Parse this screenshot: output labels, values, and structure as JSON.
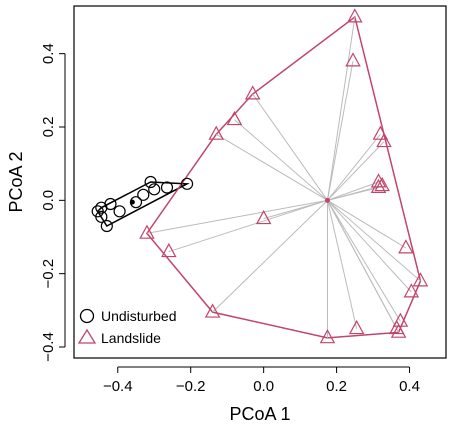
{
  "chart_data": {
    "type": "scatter",
    "xlabel": "PCoA 1",
    "ylabel": "PCoA 2",
    "xlim": [
      -0.52,
      0.5
    ],
    "ylim": [
      -0.43,
      0.53
    ],
    "x_ticks": [
      -0.4,
      -0.2,
      0.0,
      0.2,
      0.4
    ],
    "x_tick_labels": [
      "−0.4",
      "−0.2",
      "0.0",
      "0.2",
      "0.4"
    ],
    "y_ticks": [
      -0.4,
      -0.2,
      0.0,
      0.2,
      0.4
    ],
    "y_tick_labels": [
      "−0.4",
      "−0.2",
      "0.0",
      "0.2",
      "0.4"
    ],
    "grid": false,
    "legend_position": "bottom-left",
    "series": [
      {
        "name": "Undisturbed",
        "marker": "circle",
        "color": "#000000",
        "hull": true,
        "spider": false,
        "centroid": [
          -0.36,
          -0.005
        ],
        "points": [
          [
            -0.455,
            -0.03
          ],
          [
            -0.445,
            -0.045
          ],
          [
            -0.445,
            -0.02
          ],
          [
            -0.43,
            -0.07
          ],
          [
            -0.42,
            -0.01
          ],
          [
            -0.395,
            -0.03
          ],
          [
            -0.35,
            -0.005
          ],
          [
            -0.33,
            0.015
          ],
          [
            -0.31,
            0.05
          ],
          [
            -0.3,
            0.03
          ],
          [
            -0.265,
            0.035
          ],
          [
            -0.21,
            0.045
          ]
        ]
      },
      {
        "name": "Landslide",
        "marker": "triangle",
        "color": "#c2456b",
        "hull": true,
        "spider": true,
        "centroid": [
          0.175,
          0.0
        ],
        "points": [
          [
            0.25,
            0.5
          ],
          [
            0.245,
            0.38
          ],
          [
            -0.03,
            0.29
          ],
          [
            -0.08,
            0.22
          ],
          [
            -0.13,
            0.18
          ],
          [
            0.32,
            0.18
          ],
          [
            0.33,
            0.16
          ],
          [
            0.315,
            0.05
          ],
          [
            0.325,
            0.04
          ],
          [
            0.315,
            0.035
          ],
          [
            -0.0,
            -0.05
          ],
          [
            -0.32,
            -0.09
          ],
          [
            -0.26,
            -0.14
          ],
          [
            0.39,
            -0.13
          ],
          [
            0.43,
            -0.22
          ],
          [
            0.405,
            -0.25
          ],
          [
            0.375,
            -0.33
          ],
          [
            0.365,
            -0.35
          ],
          [
            0.37,
            -0.36
          ],
          [
            0.255,
            -0.35
          ],
          [
            -0.14,
            -0.305
          ],
          [
            0.175,
            -0.375
          ]
        ]
      }
    ]
  }
}
